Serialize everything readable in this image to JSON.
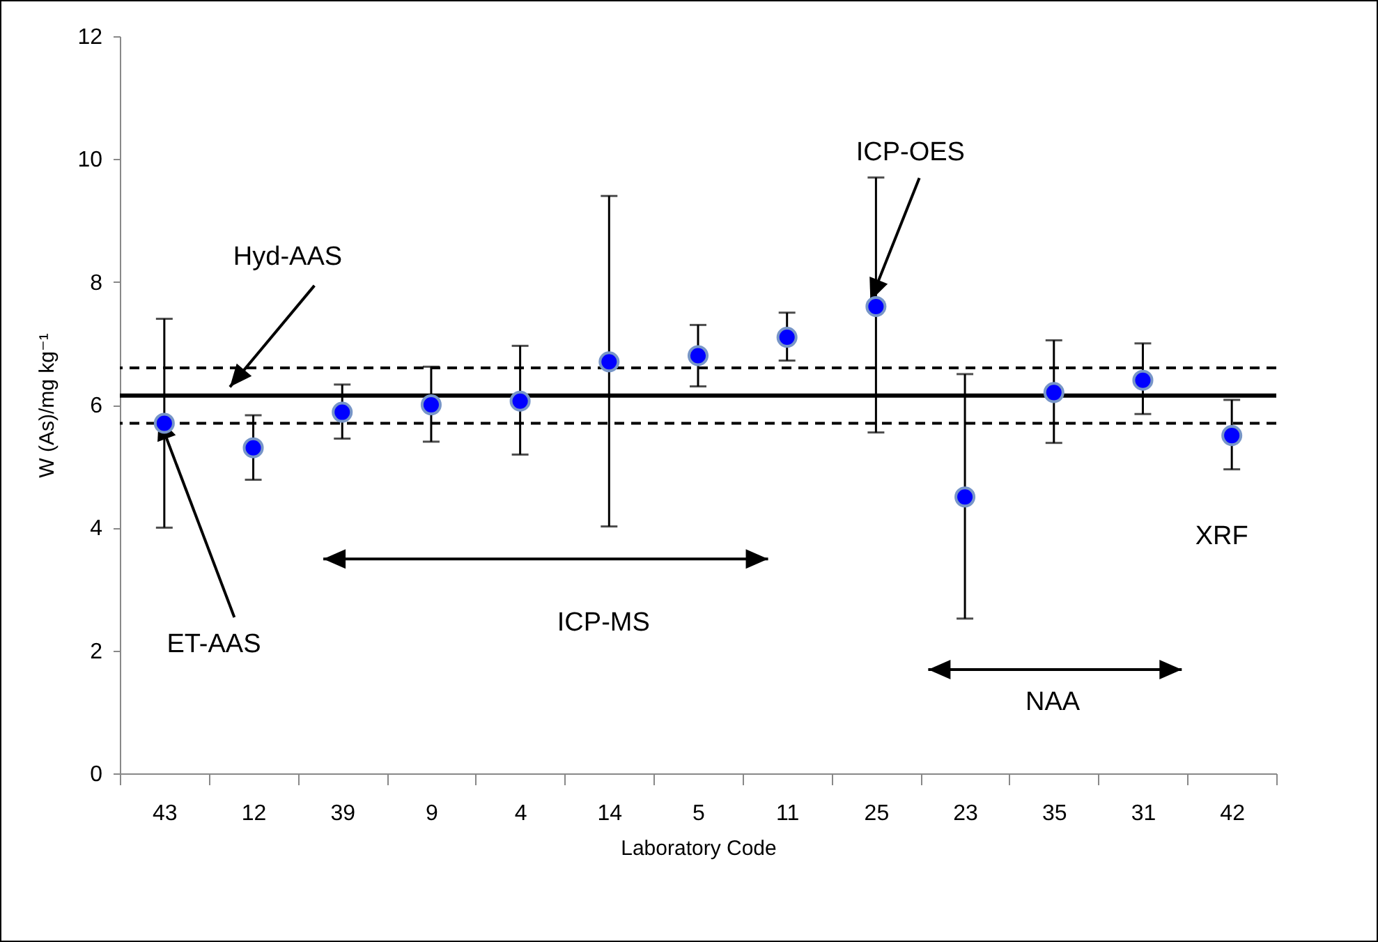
{
  "chart_data": {
    "type": "scatter",
    "xlabel": "Laboratory Code",
    "ylabel": "W (As)/mg kg⁻¹",
    "categories": [
      "43",
      "12",
      "39",
      "9",
      "4",
      "14",
      "5",
      "11",
      "25",
      "23",
      "35",
      "31",
      "42"
    ],
    "values": [
      5.7,
      5.3,
      5.88,
      6.0,
      6.06,
      6.7,
      6.8,
      7.1,
      7.6,
      4.5,
      6.2,
      6.4,
      5.5
    ],
    "errors": [
      [
        4.0,
        7.4
      ],
      [
        4.78,
        5.83
      ],
      [
        5.45,
        6.33
      ],
      [
        5.4,
        6.62
      ],
      [
        5.19,
        6.96
      ],
      [
        4.02,
        9.4
      ],
      [
        6.3,
        7.3
      ],
      [
        6.72,
        7.5
      ],
      [
        5.55,
        9.7
      ],
      [
        2.52,
        6.5
      ],
      [
        5.38,
        7.05
      ],
      [
        5.85,
        7.0
      ],
      [
        4.95,
        6.08
      ]
    ],
    "color": "#0000ff",
    "marker": "circle",
    "ylim": [
      0,
      12
    ],
    "yticks": [
      0,
      2,
      4,
      6,
      8,
      10,
      12
    ],
    "grid": false,
    "ref_lines": [
      {
        "axis": "y",
        "value": 6.15,
        "color": "#000000",
        "line_style": "solid"
      },
      {
        "axis": "y",
        "value": 6.6,
        "color": "#000000",
        "line_style": "dashed"
      },
      {
        "axis": "y",
        "value": 5.7,
        "color": "#000000",
        "line_style": "dashed"
      }
    ],
    "annotations": [
      {
        "text": "ET-AAS",
        "x": "43",
        "y": 5.7
      },
      "Hyd-AAS",
      "ICP-MS",
      {
        "text": "ICP-OES",
        "x": "25",
        "y": 7.6
      },
      "NAA",
      "XRF"
    ]
  }
}
